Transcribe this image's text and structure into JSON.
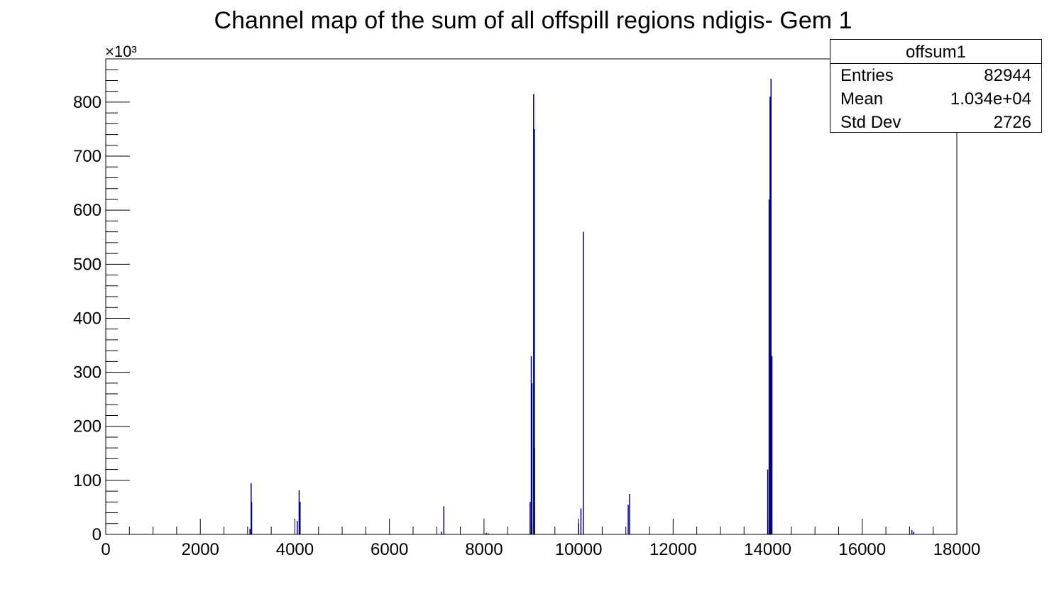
{
  "chart_data": {
    "type": "bar",
    "title": "Channel map of the sum of all offspill regions ndigis- Gem 1",
    "xlabel": "",
    "ylabel": "",
    "y_multiplier_label": "×10³",
    "xlim": [
      0,
      18000
    ],
    "ylim": [
      0,
      880
    ],
    "x_ticks": [
      0,
      2000,
      4000,
      6000,
      8000,
      10000,
      12000,
      14000,
      16000,
      18000
    ],
    "y_ticks": [
      0,
      100,
      200,
      300,
      400,
      500,
      600,
      700,
      800
    ],
    "grid": false,
    "bar_color": "#000080",
    "bins": [
      {
        "x": 3050,
        "y": 10
      },
      {
        "x": 3075,
        "y": 95
      },
      {
        "x": 3085,
        "y": 60
      },
      {
        "x": 4050,
        "y": 25
      },
      {
        "x": 4090,
        "y": 82
      },
      {
        "x": 4110,
        "y": 60
      },
      {
        "x": 7100,
        "y": 5
      },
      {
        "x": 7150,
        "y": 52
      },
      {
        "x": 8050,
        "y": 3
      },
      {
        "x": 8090,
        "y": 2
      },
      {
        "x": 8975,
        "y": 60
      },
      {
        "x": 9000,
        "y": 330
      },
      {
        "x": 9015,
        "y": 280
      },
      {
        "x": 9050,
        "y": 815
      },
      {
        "x": 9065,
        "y": 750
      },
      {
        "x": 9070,
        "y": 160
      },
      {
        "x": 10000,
        "y": 20
      },
      {
        "x": 10050,
        "y": 48
      },
      {
        "x": 10100,
        "y": 560
      },
      {
        "x": 11050,
        "y": 55
      },
      {
        "x": 11080,
        "y": 75
      },
      {
        "x": 14000,
        "y": 120
      },
      {
        "x": 14030,
        "y": 620
      },
      {
        "x": 14050,
        "y": 810
      },
      {
        "x": 14070,
        "y": 843
      },
      {
        "x": 14090,
        "y": 330
      },
      {
        "x": 17050,
        "y": 8
      },
      {
        "x": 17090,
        "y": 5
      }
    ]
  },
  "stats_box": {
    "name": "offsum1",
    "rows": [
      {
        "label": "Entries",
        "value": "82944"
      },
      {
        "label": "Mean",
        "value": "1.034e+04"
      },
      {
        "label": "Std Dev",
        "value": "2726"
      }
    ]
  }
}
